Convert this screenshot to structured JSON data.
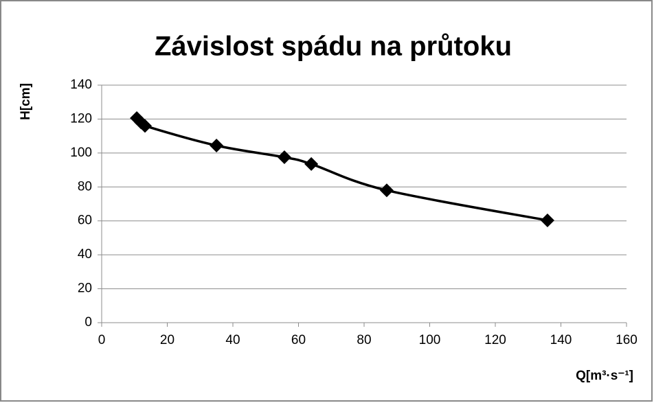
{
  "chart_data": {
    "type": "scatter",
    "title": "Závislost spádu na průtoku",
    "x_label": "Q[m³·s⁻¹]",
    "y_label": "H[cm]",
    "x": [
      10.7,
      12,
      13.2,
      35,
      55.7,
      63.9,
      86.9,
      135.9
    ],
    "values": [
      120.6,
      118,
      116,
      104.4,
      97.5,
      93.5,
      78,
      60.3
    ],
    "color": "#000000",
    "line": "smooth",
    "xlim": [
      0,
      160
    ],
    "xticks": [
      0,
      20,
      40,
      60,
      80,
      100,
      120,
      140,
      160
    ],
    "ylim": [
      0,
      140
    ],
    "yticks": [
      0,
      20,
      40,
      60,
      80,
      100,
      120,
      140
    ],
    "grid": true
  }
}
